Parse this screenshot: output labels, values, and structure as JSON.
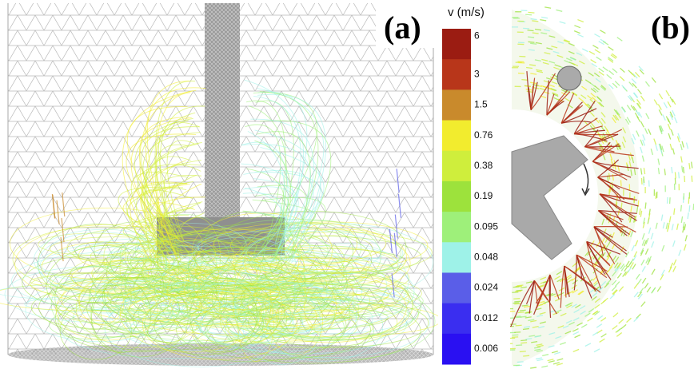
{
  "panels": [
    {
      "label": "(a)"
    },
    {
      "label": "(b)"
    }
  ],
  "colorbar": {
    "title": "v (m/s)",
    "levels": [
      {
        "label": "6",
        "color": "#9b1c12"
      },
      {
        "label": "3",
        "color": "#b8361a"
      },
      {
        "label": "1.5",
        "color": "#c98a2c"
      },
      {
        "label": "0.76",
        "color": "#f2ec2e"
      },
      {
        "label": "0.38",
        "color": "#cfee3c"
      },
      {
        "label": "0.19",
        "color": "#9de23c"
      },
      {
        "label": "0.095",
        "color": "#9ef07a"
      },
      {
        "label": "0.048",
        "color": "#9ef2e8"
      },
      {
        "label": "0.024",
        "color": "#5a5ee8"
      },
      {
        "label": "0.012",
        "color": "#3a2ef0"
      },
      {
        "label": "0.006",
        "color": "#2a10f2"
      }
    ]
  }
}
